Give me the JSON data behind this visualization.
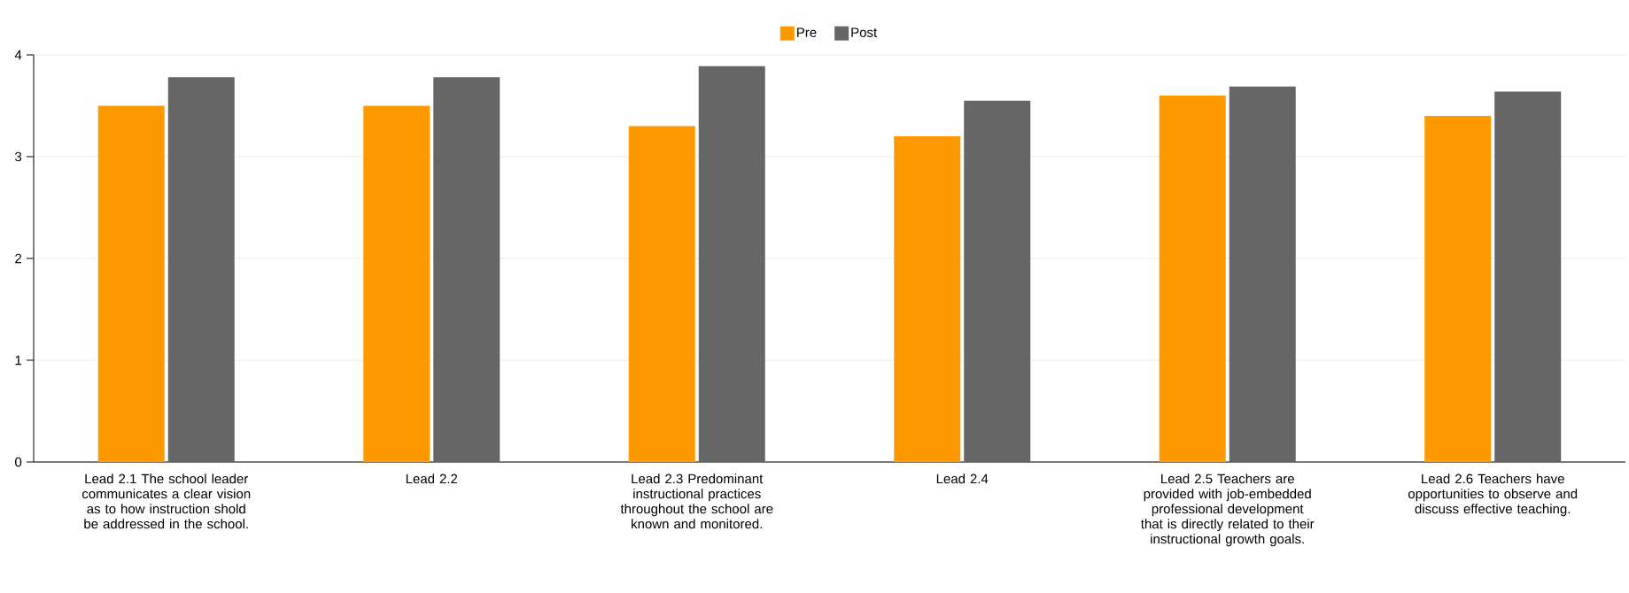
{
  "chart_data": {
    "type": "bar",
    "categories": [
      "Lead 2.1 The school leader communicates a clear vision as to how instruction shold be addressed in the school.",
      "Lead 2.2",
      "Lead 2.3  Predominant instructional practices throughout the school are known and monitored.",
      "Lead 2.4",
      "Lead 2.5  Teachers are provided with job-embedded professional development that is directly related to their instructional growth goals.",
      "Lead 2.6 Teachers have opportunities to observe and discuss effective teaching."
    ],
    "series": [
      {
        "name": "Pre",
        "color": "#ff9900",
        "values": [
          3.5,
          3.5,
          3.3,
          3.2,
          3.6,
          3.4
        ]
      },
      {
        "name": "Post",
        "color": "#666666",
        "values": [
          3.78,
          3.78,
          3.89,
          3.55,
          3.69,
          3.64
        ]
      }
    ],
    "ylim": [
      0,
      4
    ],
    "yticks": [
      0,
      1,
      2,
      3,
      4
    ],
    "grid": "y",
    "legend": "top"
  }
}
